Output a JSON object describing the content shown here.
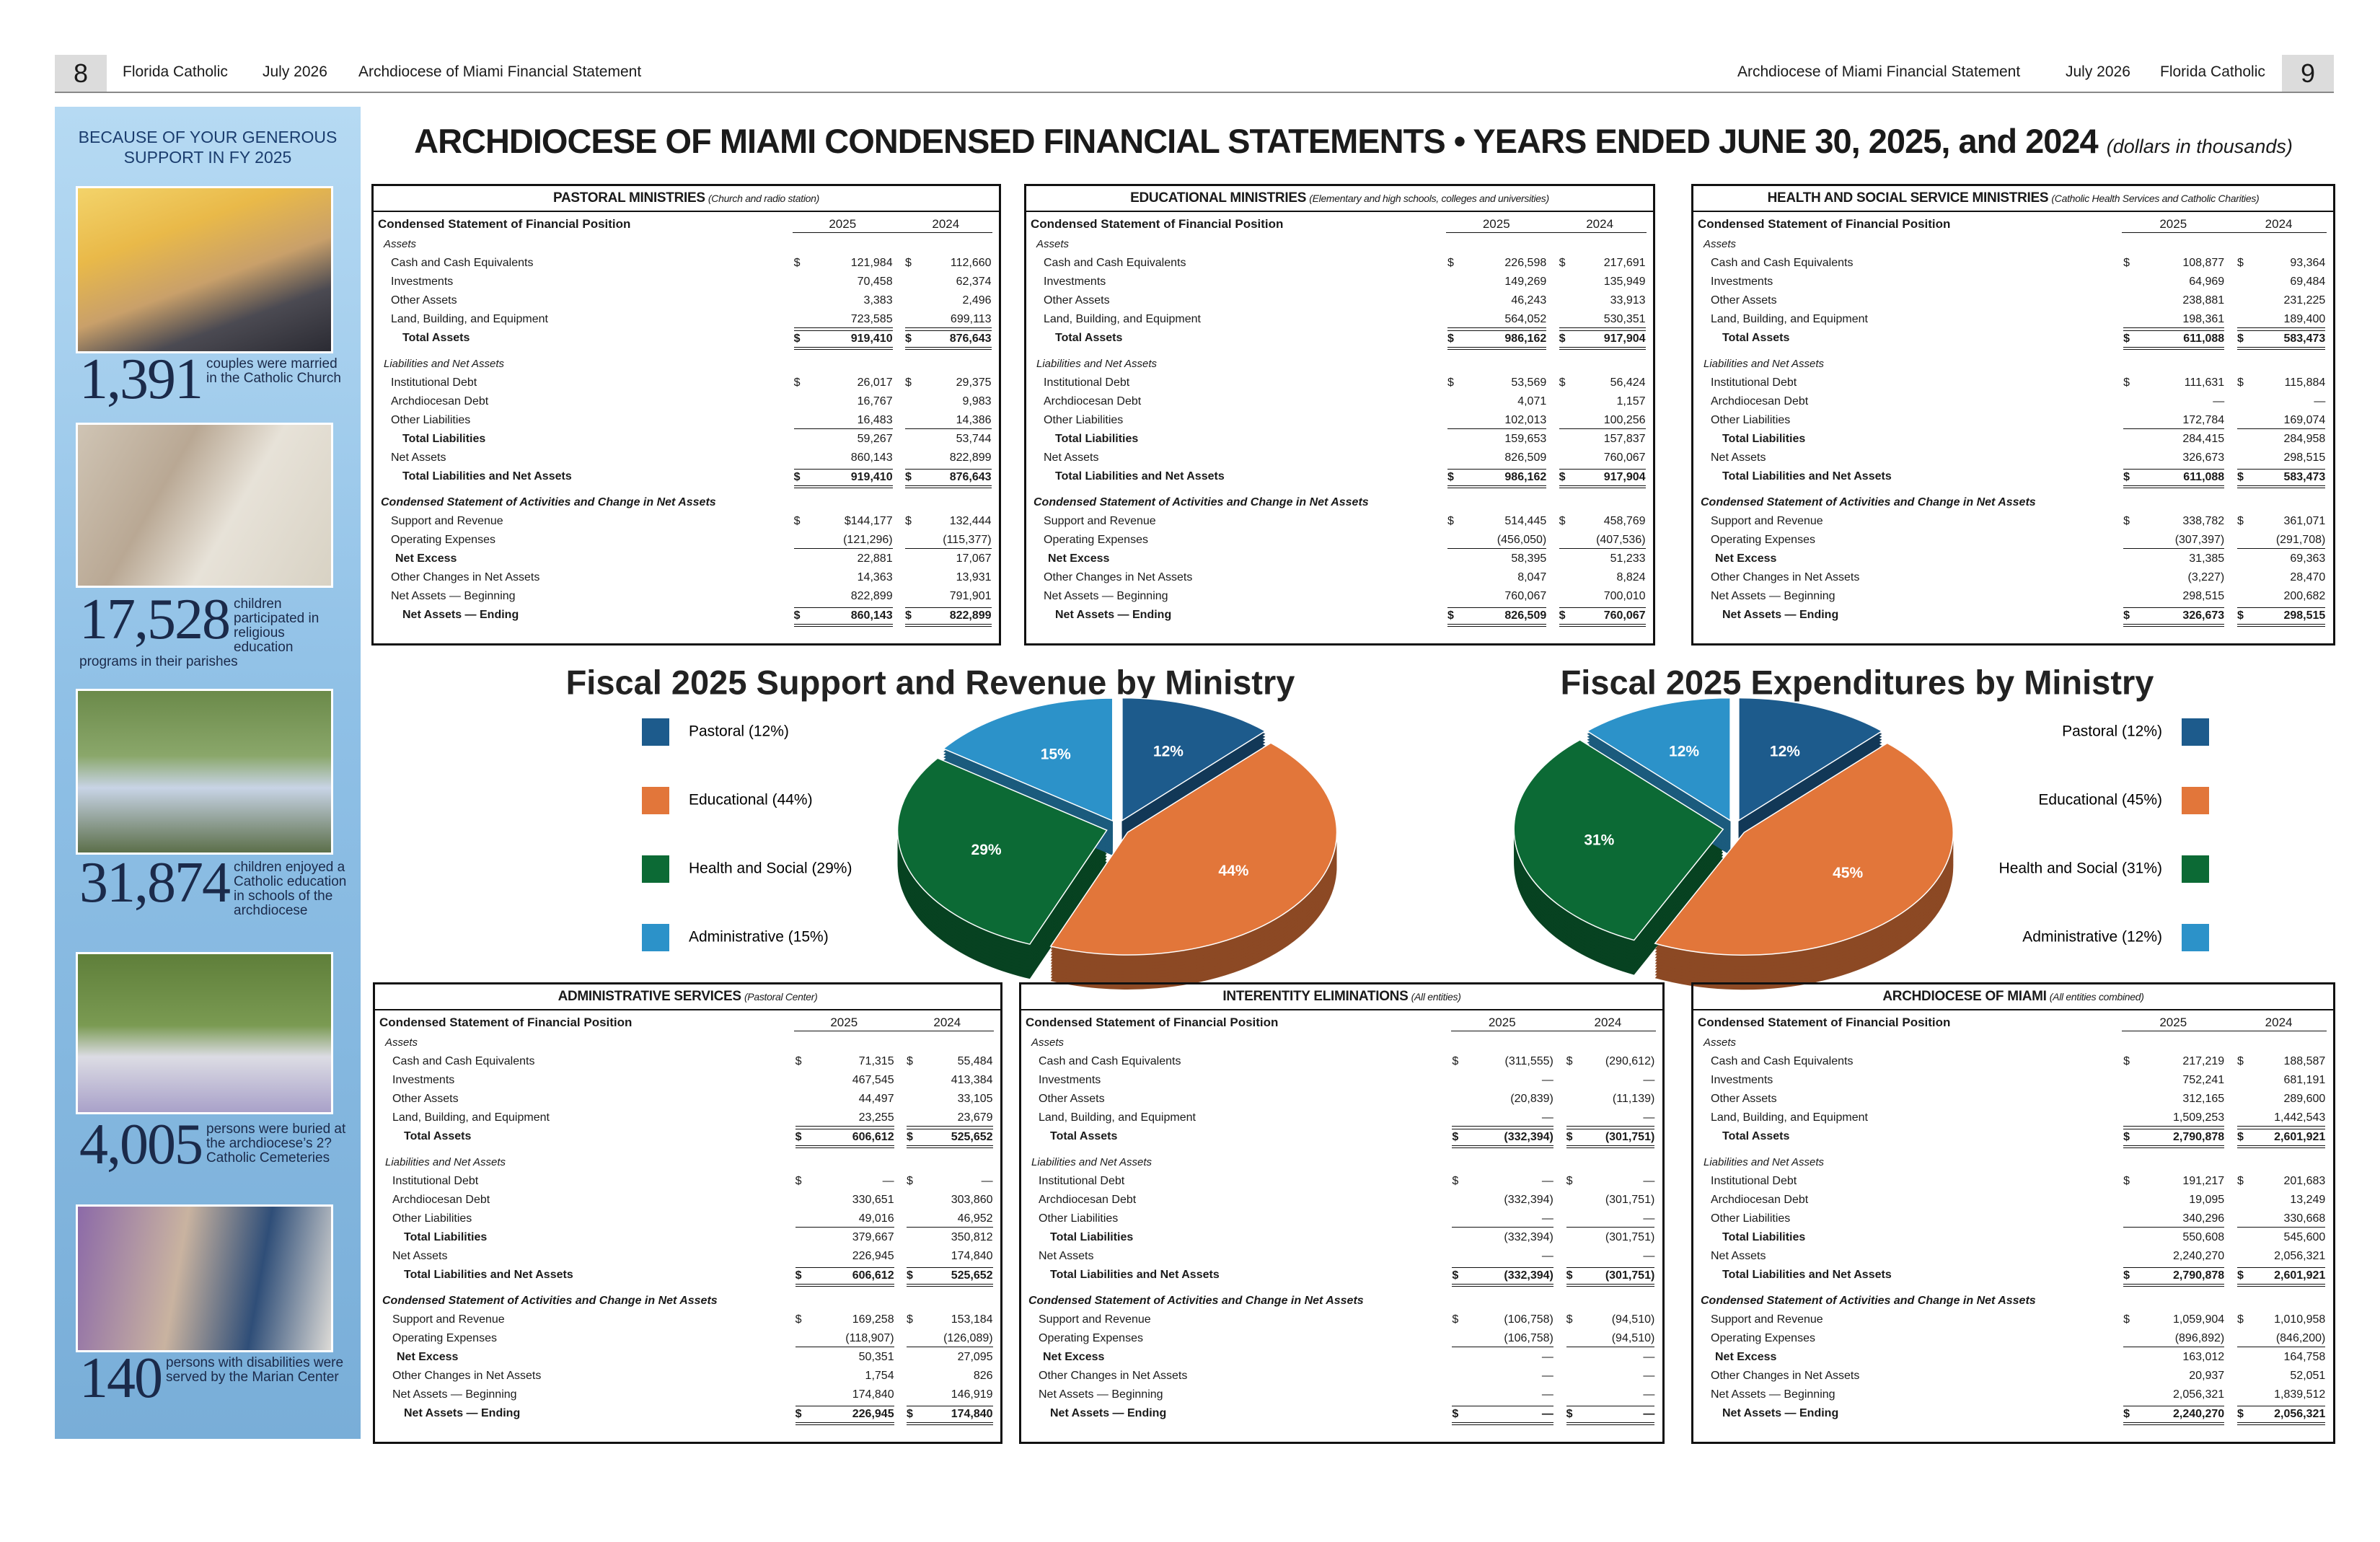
{
  "header": {
    "left": {
      "page": "8",
      "paper": "Florida Catholic",
      "date": "July 2026",
      "section": "Archdiocese of Miami Financial Statement"
    },
    "right": {
      "section": "Archdiocese of Miami Financial Statement",
      "date": "July 2026",
      "paper": "Florida Catholic",
      "page": "9"
    }
  },
  "sidebar": {
    "title_lines": [
      "BECAUSE OF YOUR GENEROUS",
      "SUPPORT IN FY 2025"
    ],
    "stats": [
      {
        "number": "1,391",
        "text": "couples were married in the Catholic Church"
      },
      {
        "number": "17,528",
        "text": "children participated in religious education programs in their parishes"
      },
      {
        "number": "31,874",
        "text": "children enjoyed a Catholic education in schools of the archdiocese"
      },
      {
        "number": "4,005",
        "text": "persons were buried at the archdiocese’s 2? Catholic Cemeteries"
      },
      {
        "number": "140",
        "text": "persons with disabilities were served by the Marian Center"
      }
    ]
  },
  "title": "ARCHDIOCESE OF MIAMI CONDENSED FINANCIAL STATEMENTS • YEARS ENDED JUNE 30, 2025, and 2024",
  "title_note": "(dollars in thousands)",
  "statement": {
    "heading": "Condensed Statement of Financial Position",
    "years": [
      "2025",
      "2024"
    ],
    "currency": "$",
    "rows": [
      {
        "label": "Assets",
        "kind": "section"
      },
      {
        "label": "Cash and Cash Equivalents",
        "kind": "item",
        "dollar": true
      },
      {
        "label": "Investments",
        "kind": "item"
      },
      {
        "label": "Other Assets",
        "kind": "item"
      },
      {
        "label": "Land, Building, and Equipment",
        "kind": "item",
        "underline": true
      },
      {
        "label": "Total Assets",
        "kind": "total",
        "dollar": true
      },
      {
        "label": "Liabilities and Net Assets",
        "kind": "section"
      },
      {
        "label": "Institutional Debt",
        "kind": "item",
        "dollar": true
      },
      {
        "label": "Archdiocesan Debt",
        "kind": "item"
      },
      {
        "label": "Other Liabilities",
        "kind": "item",
        "underline": true
      },
      {
        "label": "Total Liabilities",
        "kind": "subtotal"
      },
      {
        "label": "Net Assets",
        "kind": "item"
      },
      {
        "label": "Total Liabilities and Net Assets",
        "kind": "total",
        "dollar": true
      },
      {
        "label": "Condensed Statement of Activities and Change in Net Assets",
        "kind": "heading"
      },
      {
        "label": "Support and Revenue",
        "kind": "item",
        "dollar": true
      },
      {
        "label": "Operating Expenses",
        "kind": "item",
        "underline": true
      },
      {
        "label": "Net Excess",
        "kind": "subtotal"
      },
      {
        "label": "Other Changes in Net Assets",
        "kind": "item"
      },
      {
        "label": "Net Assets — Beginning",
        "kind": "item"
      },
      {
        "label": "Net Assets — Ending",
        "kind": "total",
        "dollar": true
      }
    ]
  },
  "tables": [
    {
      "title": "PASTORAL MINISTRIES",
      "subtitle": "(Church and radio station)",
      "values": [
        [
          "121,984",
          "112,660"
        ],
        [
          "70,458",
          "62,374"
        ],
        [
          "3,383",
          "2,496"
        ],
        [
          "723,585",
          "699,113"
        ],
        [
          "919,410",
          "876,643"
        ],
        [
          "26,017",
          "29,375"
        ],
        [
          "16,767",
          "9,983"
        ],
        [
          "16,483",
          "14,386"
        ],
        [
          "59,267",
          "53,744"
        ],
        [
          "860,143",
          "822,899"
        ],
        [
          "919,410",
          "876,643"
        ],
        [
          "$144,177",
          "132,444"
        ],
        [
          "(121,296)",
          "(115,377)"
        ],
        [
          "22,881",
          "17,067"
        ],
        [
          "14,363",
          "13,931"
        ],
        [
          "822,899",
          "791,901"
        ],
        [
          "860,143",
          "822,899"
        ]
      ]
    },
    {
      "title": "EDUCATIONAL MINISTRIES",
      "subtitle": "(Elementary and high schools, colleges and universities)",
      "values": [
        [
          "226,598",
          "217,691"
        ],
        [
          "149,269",
          "135,949"
        ],
        [
          "46,243",
          "33,913"
        ],
        [
          "564,052",
          "530,351"
        ],
        [
          "986,162",
          "917,904"
        ],
        [
          "53,569",
          "56,424"
        ],
        [
          "4,071",
          "1,157"
        ],
        [
          "102,013",
          "100,256"
        ],
        [
          "159,653",
          "157,837"
        ],
        [
          "826,509",
          "760,067"
        ],
        [
          "986,162",
          "917,904"
        ],
        [
          "514,445",
          "458,769"
        ],
        [
          "(456,050)",
          "(407,536)"
        ],
        [
          "58,395",
          "51,233"
        ],
        [
          "8,047",
          "8,824"
        ],
        [
          "760,067",
          "700,010"
        ],
        [
          "826,509",
          "760,067"
        ]
      ]
    },
    {
      "title": "HEALTH AND SOCIAL SERVICE MINISTRIES",
      "subtitle": "(Catholic Health Services and Catholic Charities)",
      "values": [
        [
          "108,877",
          "93,364"
        ],
        [
          "64,969",
          "69,484"
        ],
        [
          "238,881",
          "231,225"
        ],
        [
          "198,361",
          "189,400"
        ],
        [
          "611,088",
          "583,473"
        ],
        [
          "111,631",
          "115,884"
        ],
        [
          "—",
          "—"
        ],
        [
          "172,784",
          "169,074"
        ],
        [
          "284,415",
          "284,958"
        ],
        [
          "326,673",
          "298,515"
        ],
        [
          "611,088",
          "583,473"
        ],
        [
          "338,782",
          "361,071"
        ],
        [
          "(307,397)",
          "(291,708)"
        ],
        [
          "31,385",
          "69,363"
        ],
        [
          "(3,227)",
          "28,470"
        ],
        [
          "298,515",
          "200,682"
        ],
        [
          "326,673",
          "298,515"
        ]
      ]
    },
    {
      "title": "ADMINISTRATIVE SERVICES",
      "subtitle": "(Pastoral Center)",
      "values": [
        [
          "71,315",
          "55,484"
        ],
        [
          "467,545",
          "413,384"
        ],
        [
          "44,497",
          "33,105"
        ],
        [
          "23,255",
          "23,679"
        ],
        [
          "606,612",
          "525,652"
        ],
        [
          "—",
          "—"
        ],
        [
          "330,651",
          "303,860"
        ],
        [
          "49,016",
          "46,952"
        ],
        [
          "379,667",
          "350,812"
        ],
        [
          "226,945",
          "174,840"
        ],
        [
          "606,612",
          "525,652"
        ],
        [
          "169,258",
          "153,184"
        ],
        [
          "(118,907)",
          "(126,089)"
        ],
        [
          "50,351",
          "27,095"
        ],
        [
          "1,754",
          "826"
        ],
        [
          "174,840",
          "146,919"
        ],
        [
          "226,945",
          "174,840"
        ]
      ]
    },
    {
      "title": "INTERENTITY ELIMINATIONS",
      "subtitle": "(All entities)",
      "values": [
        [
          "(311,555)",
          "(290,612)"
        ],
        [
          "—",
          "—"
        ],
        [
          "(20,839)",
          "(11,139)"
        ],
        [
          "—",
          "—"
        ],
        [
          "(332,394)",
          "(301,751)"
        ],
        [
          "—",
          "—"
        ],
        [
          "(332,394)",
          "(301,751)"
        ],
        [
          "—",
          "—"
        ],
        [
          "(332,394)",
          "(301,751)"
        ],
        [
          "—",
          "—"
        ],
        [
          "(332,394)",
          "(301,751)"
        ],
        [
          "(106,758)",
          "(94,510)"
        ],
        [
          "(106,758)",
          "(94,510)"
        ],
        [
          "—",
          "—"
        ],
        [
          "—",
          "—"
        ],
        [
          "—",
          "—"
        ],
        [
          "—",
          "—"
        ]
      ]
    },
    {
      "title": "ARCHDIOCESE OF MIAMI",
      "subtitle": "(All entities combined)",
      "values": [
        [
          "217,219",
          "188,587"
        ],
        [
          "752,241",
          "681,191"
        ],
        [
          "312,165",
          "289,600"
        ],
        [
          "1,509,253",
          "1,442,543"
        ],
        [
          "2,790,878",
          "2,601,921"
        ],
        [
          "191,217",
          "201,683"
        ],
        [
          "19,095",
          "13,249"
        ],
        [
          "340,296",
          "330,668"
        ],
        [
          "550,608",
          "545,600"
        ],
        [
          "2,240,270",
          "2,056,321"
        ],
        [
          "2,790,878",
          "2,601,921"
        ],
        [
          "1,059,904",
          "1,010,958"
        ],
        [
          "(896,892)",
          "(846,200)"
        ],
        [
          "163,012",
          "164,758"
        ],
        [
          "20,937",
          "52,051"
        ],
        [
          "2,056,321",
          "1,839,512"
        ],
        [
          "2,240,270",
          "2,056,321"
        ]
      ]
    }
  ],
  "chart_data": [
    {
      "type": "pie",
      "title": "Fiscal 2025 Support and Revenue by Ministry",
      "legend": "left",
      "categories": [
        "Pastoral (12%)",
        "Educational (44%)",
        "Health and Social (29%)",
        "Administrative (15%)"
      ],
      "values": [
        12,
        44,
        29,
        15
      ],
      "value_labels": [
        "12%",
        "44%",
        "29%",
        "15%"
      ],
      "colors": [
        "#1d5b8c",
        "#e2763a",
        "#0c6a35",
        "#2c92c9"
      ]
    },
    {
      "type": "pie",
      "title": "Fiscal 2025 Expenditures by Ministry",
      "legend": "right",
      "categories": [
        "Pastoral (12%)",
        "Educational (45%)",
        "Health and Social (31%)",
        "Administrative (12%)"
      ],
      "values": [
        12,
        45,
        31,
        12
      ],
      "value_labels": [
        "12%",
        "45%",
        "31%",
        "12%"
      ],
      "colors": [
        "#1d5b8c",
        "#e2763a",
        "#0c6a35",
        "#2c92c9"
      ]
    }
  ]
}
